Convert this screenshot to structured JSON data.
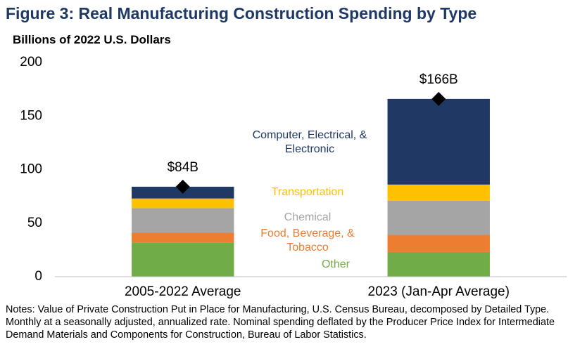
{
  "chart_data": {
    "type": "stacked_bar",
    "title": "Figure 3: Real Manufacturing Construction Spending by Type",
    "subtitle": "Billions of 2022 U.S. Dollars",
    "categories": [
      "2005-2022 Average",
      "2023 (Jan-Apr Average)"
    ],
    "series": [
      {
        "name": "Other",
        "color": "#70ad47",
        "values": [
          32,
          23
        ]
      },
      {
        "name": "Food, Beverage, & Tobacco",
        "color": "#ed7d31",
        "values": [
          9,
          16
        ]
      },
      {
        "name": "Chemical",
        "color": "#a5a5a5",
        "values": [
          23,
          32
        ]
      },
      {
        "name": "Transportation",
        "color": "#ffc000",
        "values": [
          9,
          15
        ]
      },
      {
        "name": "Computer, Electrical, & Electronic",
        "color": "#1f3864",
        "values": [
          11,
          80
        ]
      }
    ],
    "totals": {
      "values": [
        84,
        166
      ],
      "value_labels": [
        "$84B",
        "$166B"
      ]
    },
    "ylim": [
      0,
      200
    ],
    "yticks": [
      0,
      50,
      100,
      150,
      200
    ],
    "grid": false,
    "notes": "Notes: Value of Private Construction Put in Place for Manufacturing, U.S. Census Bureau, decomposed by Detailed Type. Monthly at a seasonally adjusted, annualized rate. Nominal spending deflated by the Producer Price Index for Intermediate Demand Materials and Components for Construction, Bureau of Labor Statistics."
  }
}
